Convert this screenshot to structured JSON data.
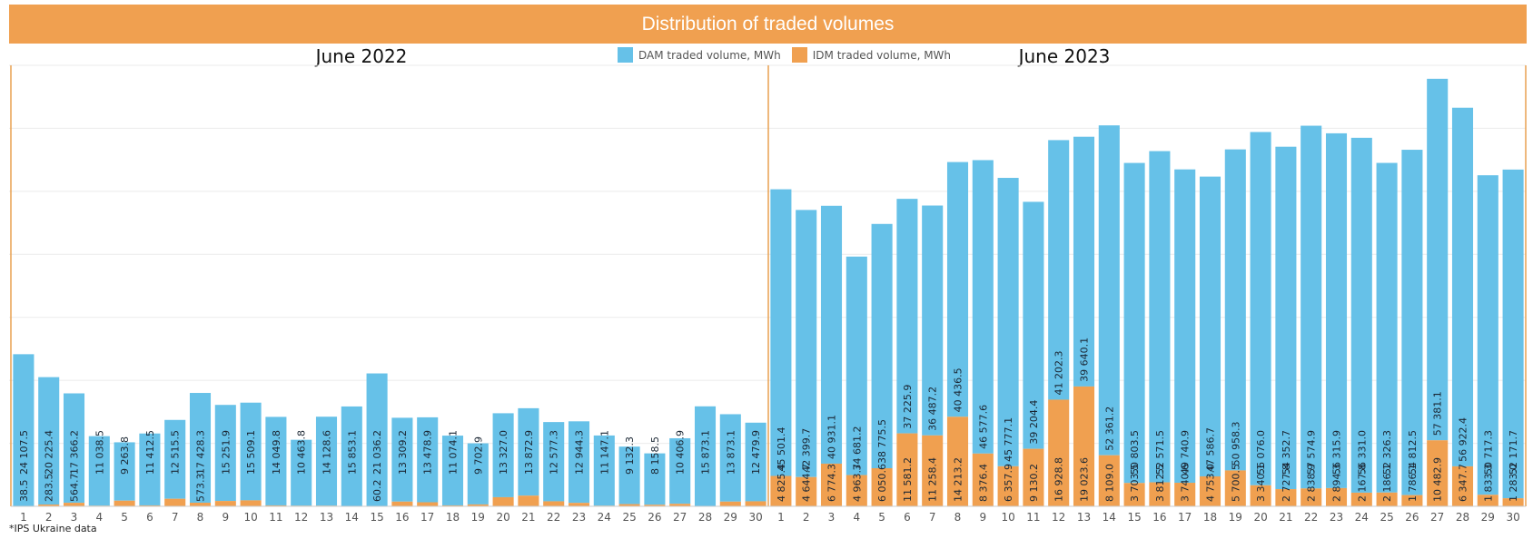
{
  "header": {
    "title": "Distribution of traded volumes"
  },
  "colors": {
    "header_bg": "#F0A050",
    "dam": "#66C1E8",
    "idm": "#F0A050",
    "divider": "#E8A050",
    "grid": "#EBEBEB"
  },
  "legend": {
    "dam_label": "DAM traded volume, MWh",
    "idm_label": "IDM traded volume, MWh",
    "dam_icon": "blue-square",
    "idm_icon": "orange-square"
  },
  "source_note": "*IPS Ukraine data",
  "chart_data": [
    {
      "type": "bar",
      "stacked": true,
      "title": "June 2022",
      "categories": [
        "1",
        "2",
        "3",
        "4",
        "5",
        "6",
        "7",
        "8",
        "9",
        "10",
        "11",
        "12",
        "13",
        "14",
        "15",
        "16",
        "17",
        "18",
        "19",
        "20",
        "21",
        "22",
        "23",
        "24",
        "25",
        "26",
        "27",
        "28",
        "29",
        "30"
      ],
      "series": [
        {
          "name": "IDM traded volume, MWh",
          "values": [
            38.5,
            283.5,
            564.7,
            null,
            null,
            null,
            null,
            573.3,
            null,
            null,
            null,
            null,
            null,
            null,
            60.2,
            null,
            null,
            null,
            null,
            null,
            null,
            null,
            null,
            null,
            null,
            null,
            null,
            null,
            null,
            null
          ],
          "labels": [
            "38.5",
            "283.5",
            "564.7",
            "",
            "",
            "",
            "",
            "573.3",
            "",
            "",
            "",
            "",
            "",
            "",
            "60.2",
            "",
            "",
            "",
            "",
            "",
            "",
            "",
            "",
            "",
            "",
            "",
            "",
            "",
            "",
            ""
          ]
        },
        {
          "name": "DAM traded volume, MWh",
          "values": [
            24107.5,
            20225.4,
            17366.2,
            11038.5,
            9263.8,
            11412.5,
            12515.5,
            17428.3,
            15251.9,
            15509.1,
            14049.8,
            10463.8,
            14128.6,
            15853.1,
            21036.2,
            13309.2,
            13478.9,
            11074.1,
            9702.9,
            13327.0,
            13872.9,
            12577.3,
            12944.3,
            11147.1,
            9132.3,
            8158.5,
            10406.9,
            15873.1,
            13873.1,
            12479.9
          ],
          "labels": [
            "24 107.5",
            "20 225.4",
            "17 366.2",
            "11 038.5",
            "9 263.8",
            "11 412.5",
            "12 515.5",
            "17 428.3",
            "15 251.9",
            "15 509.1",
            "14 049.8",
            "10 463.8",
            "14 128.6",
            "15 853.1",
            "21 036.2",
            "13 309.2",
            "13 478.9",
            "11 074.1",
            "9 702.9",
            "13 327.0",
            "13 872.9",
            "12 577.3",
            "12 944.3",
            "11 147.1",
            "9 132.3",
            "8 158.5",
            "10 406.9",
            "15 873.1",
            "13 873.1",
            "12 479.9"
          ]
        }
      ],
      "unlabeled_idm_values": [
        0,
        0,
        0,
        100,
        900,
        150,
        1200,
        0,
        850,
        950,
        150,
        100,
        100,
        0,
        0,
        750,
        650,
        150,
        300,
        1450,
        1700,
        800,
        550,
        100,
        350,
        250,
        400,
        0,
        750,
        800
      ],
      "ylim": [
        0,
        70000
      ],
      "grid": true
    },
    {
      "type": "bar",
      "stacked": true,
      "title": "June 2023",
      "categories": [
        "1",
        "2",
        "3",
        "4",
        "5",
        "6",
        "7",
        "8",
        "9",
        "10",
        "11",
        "12",
        "13",
        "14",
        "15",
        "16",
        "17",
        "18",
        "19",
        "20",
        "21",
        "22",
        "23",
        "24",
        "25",
        "26",
        "27",
        "28",
        "29",
        "30"
      ],
      "series": [
        {
          "name": "IDM traded volume, MWh",
          "values": [
            4825.4,
            4644.7,
            6774.3,
            4963.7,
            6050.6,
            11581.2,
            11258.4,
            14213.2,
            8376.4,
            6357.9,
            9130.2,
            16928.8,
            19023.6,
            8109.0,
            3703.5,
            3812.5,
            3740.6,
            4753.0,
            5700.5,
            3340.1,
            2727.8,
            2838.9,
            2894.3,
            2167.8,
            2186.1,
            1786.1,
            10482.9,
            6347.7,
            1833.3,
            1283.0
          ],
          "labels": [
            "4 825.4",
            "4 644.7",
            "6 774.3",
            "4 963.7",
            "6 050.6",
            "11 581.2",
            "11 258.4",
            "14 213.2",
            "8 376.4",
            "6 357.9",
            "9 130.2",
            "16 928.8",
            "19 023.6",
            "8 109.0",
            "3 703.5",
            "3 812.5",
            "3 740.6",
            "4 753.0",
            "5 700.5",
            "3 340.1",
            "2 727.8",
            "2 838.9",
            "2 894.3",
            "2 167.8",
            "2 186.1",
            "1 786.1",
            "10 482.9",
            "6 347.7",
            "1 833.3",
            "1 283.0"
          ]
        },
        {
          "name": "DAM traded volume, MWh",
          "values": [
            45501.4,
            42399.7,
            40931.1,
            34681.2,
            38775.5,
            37225.9,
            36487.2,
            40436.5,
            46577.6,
            45777.1,
            39204.4,
            41202.3,
            39640.1,
            52361.2,
            50803.5,
            52571.5,
            49740.9,
            47586.7,
            50958.3,
            56076.0,
            54352.7,
            57574.9,
            56315.9,
            56331.0,
            52326.3,
            54812.5,
            57381.1,
            56922.4,
            50717.3,
            52171.7
          ],
          "labels": [
            "45 501.4",
            "42 399.7",
            "40 931.1",
            "34 681.2",
            "38 775.5",
            "37 225.9",
            "36 487.2",
            "40 436.5",
            "46 577.6",
            "45 777.1",
            "39 204.4",
            "41 202.3",
            "39 640.1",
            "52 361.2",
            "50 803.5",
            "52 571.5",
            "49 740.9",
            "47 586.7",
            "50 958.3",
            "56 076.0",
            "54 352.7",
            "57 574.9",
            "56 315.9",
            "56 331.0",
            "52 326.3",
            "54 812.5",
            "57 381.1",
            "56 922.4",
            "50 717.3",
            "52 171.7"
          ]
        }
      ],
      "ylim": [
        0,
        70000
      ],
      "grid": true
    }
  ]
}
